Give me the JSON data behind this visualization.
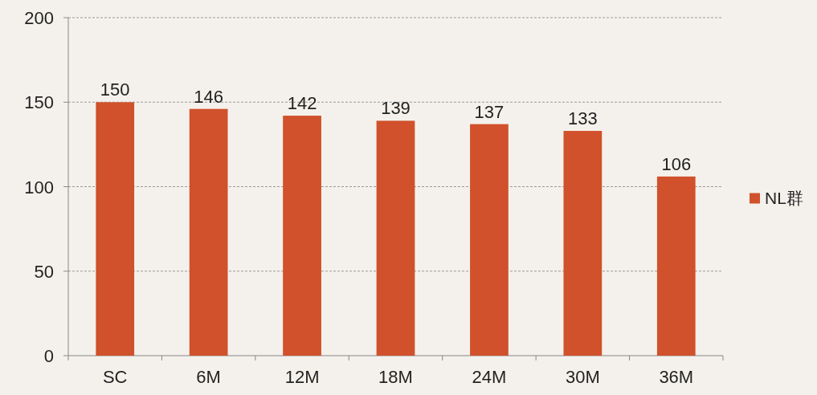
{
  "chart_data": {
    "type": "bar",
    "categories": [
      "SC",
      "6M",
      "12M",
      "18M",
      "24M",
      "30M",
      "36M"
    ],
    "series": [
      {
        "name": "NL群",
        "color": "#d0512b",
        "values": [
          150,
          146,
          142,
          139,
          137,
          133,
          106
        ]
      }
    ],
    "ylim": [
      0,
      200
    ],
    "yticks": [
      0,
      50,
      100,
      150,
      200
    ],
    "grid": "y",
    "legend": "right",
    "data_labels": true
  }
}
